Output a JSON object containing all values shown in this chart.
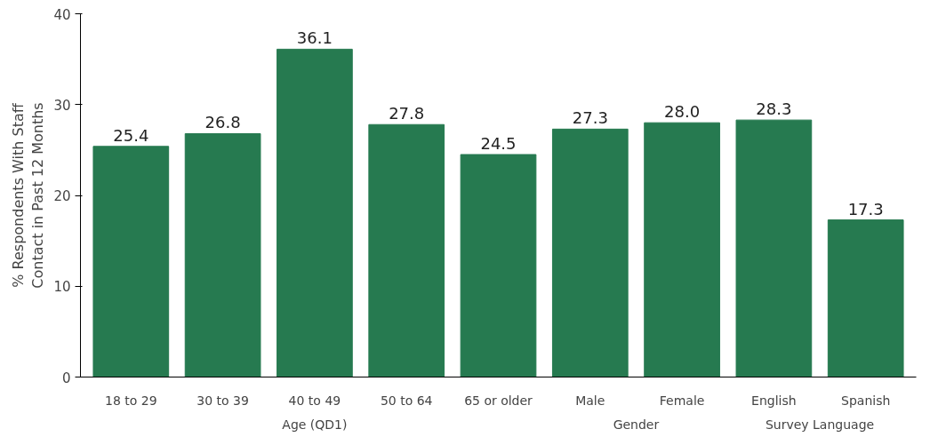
{
  "chart_data": {
    "type": "bar",
    "ylabel": "% Respondents With Staff\nContact in Past 12 Months",
    "categories": [
      "18 to 29",
      "30 to 39",
      "40 to 49",
      "50 to 64",
      "65 or older",
      "Male",
      "Female",
      "English",
      "Spanish"
    ],
    "values": [
      25.4,
      26.8,
      36.1,
      27.8,
      24.5,
      27.3,
      28.0,
      28.3,
      17.3
    ],
    "value_labels": [
      "25.4",
      "26.8",
      "36.1",
      "27.8",
      "24.5",
      "27.3",
      "28.0",
      "28.3",
      "17.3"
    ],
    "color": "#267a50",
    "ylim": [
      0,
      40
    ],
    "yticks": [
      0,
      10,
      20,
      30,
      40
    ],
    "grid": false,
    "annotations": [
      "Age (QD1)",
      "Gender",
      "Survey Language"
    ]
  }
}
